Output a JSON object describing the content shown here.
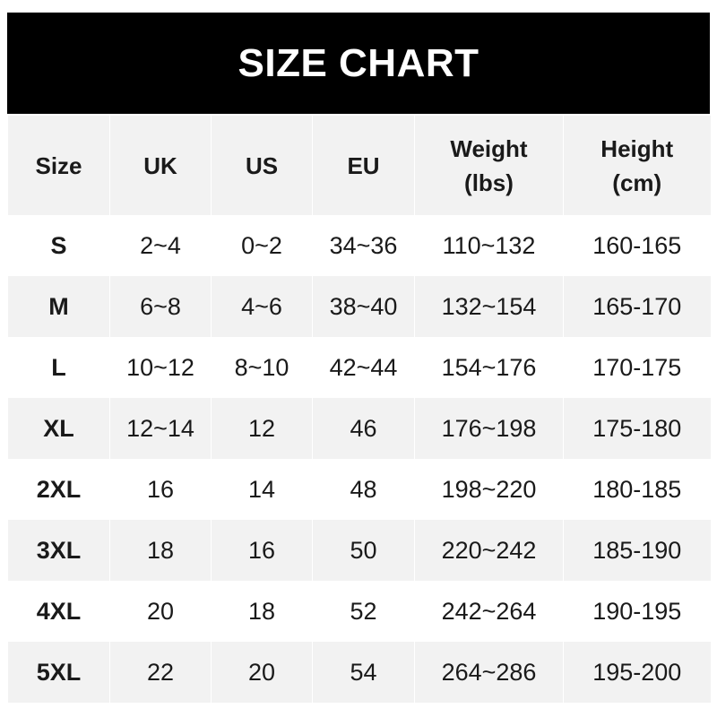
{
  "title": "SIZE CHART",
  "headers": [
    "Size",
    "UK",
    "US",
    "EU",
    "Weight\n(lbs)",
    "Height\n(cm)"
  ],
  "header_lines": [
    [
      "Size"
    ],
    [
      "UK"
    ],
    [
      "US"
    ],
    [
      "EU"
    ],
    [
      "Weight",
      "(lbs)"
    ],
    [
      "Height",
      "(cm)"
    ]
  ],
  "rows": [
    [
      "S",
      "2~4",
      "0~2",
      "34~36",
      "110~132",
      "160-165"
    ],
    [
      "M",
      "6~8",
      "4~6",
      "38~40",
      "132~154",
      "165-170"
    ],
    [
      "L",
      "10~12",
      "8~10",
      "42~44",
      "154~176",
      "170-175"
    ],
    [
      "XL",
      "12~14",
      "12",
      "46",
      "176~198",
      "175-180"
    ],
    [
      "2XL",
      "16",
      "14",
      "48",
      "198~220",
      "180-185"
    ],
    [
      "3XL",
      "18",
      "16",
      "50",
      "220~242",
      "185-190"
    ],
    [
      "4XL",
      "20",
      "18",
      "52",
      "242~264",
      "190-195"
    ],
    [
      "5XL",
      "22",
      "20",
      "54",
      "264~286",
      "195-200"
    ]
  ],
  "colors": {
    "title_bg": "#000000",
    "title_text": "#ffffff",
    "stripe": "#f2f2f2",
    "text": "#1a1a1a"
  }
}
